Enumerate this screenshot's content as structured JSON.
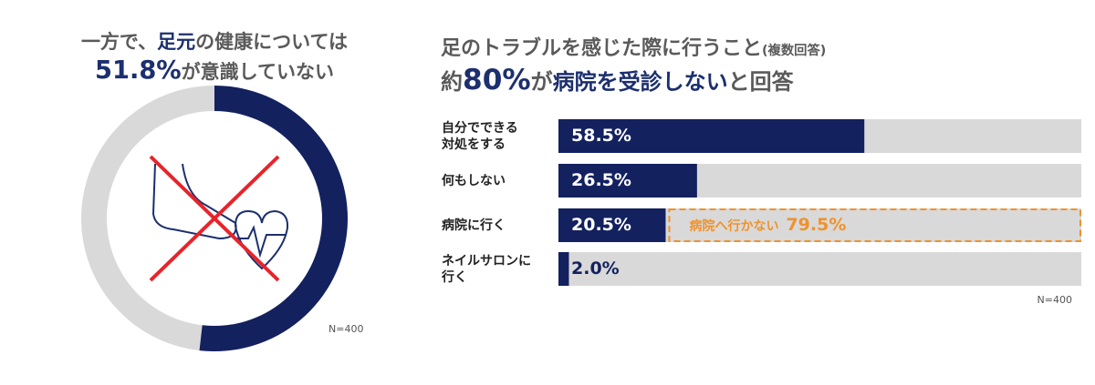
{
  "chart_data": [
    {
      "type": "donut",
      "title_lines": [
        [
          {
            "text": "一方で、"
          },
          {
            "text": "足元",
            "emphasis": true
          },
          {
            "text": "の健康については"
          }
        ],
        [
          {
            "text": "51.8%",
            "emphasis": true,
            "large": true
          },
          {
            "text": "が意識していない"
          }
        ]
      ],
      "values": [
        51.8,
        48.2
      ],
      "colors": [
        "#13215f",
        "#d9d9d9"
      ],
      "note": "N=400"
    },
    {
      "type": "hbar",
      "title_lines": [
        [
          {
            "text": "足のトラブルを感じた際に行うこと"
          },
          {
            "text": "(複数回答)",
            "small": true
          }
        ],
        [
          {
            "text": "約"
          },
          {
            "text": "80%",
            "emphasis": true,
            "large": true
          },
          {
            "text": "が"
          },
          {
            "text": "病院を受診しない",
            "emphasis": true
          },
          {
            "text": "と回答"
          }
        ]
      ],
      "categories": [
        "自分でできる\n対処をする",
        "何もしない",
        "病院に行く",
        "ネイルサロンに\n行く"
      ],
      "values": [
        58.5,
        26.5,
        20.5,
        2.0
      ],
      "value_labels": [
        "58.5%",
        "26.5%",
        "20.5%",
        "2.0%"
      ],
      "color": "#13215f",
      "track_color": "#d9d9d9",
      "xlim": [
        0,
        100
      ],
      "annotation": {
        "text": "病院へ行かない",
        "value": 79.5,
        "label": "79.5%",
        "color": "#f0922b"
      },
      "note": "N=400"
    }
  ]
}
